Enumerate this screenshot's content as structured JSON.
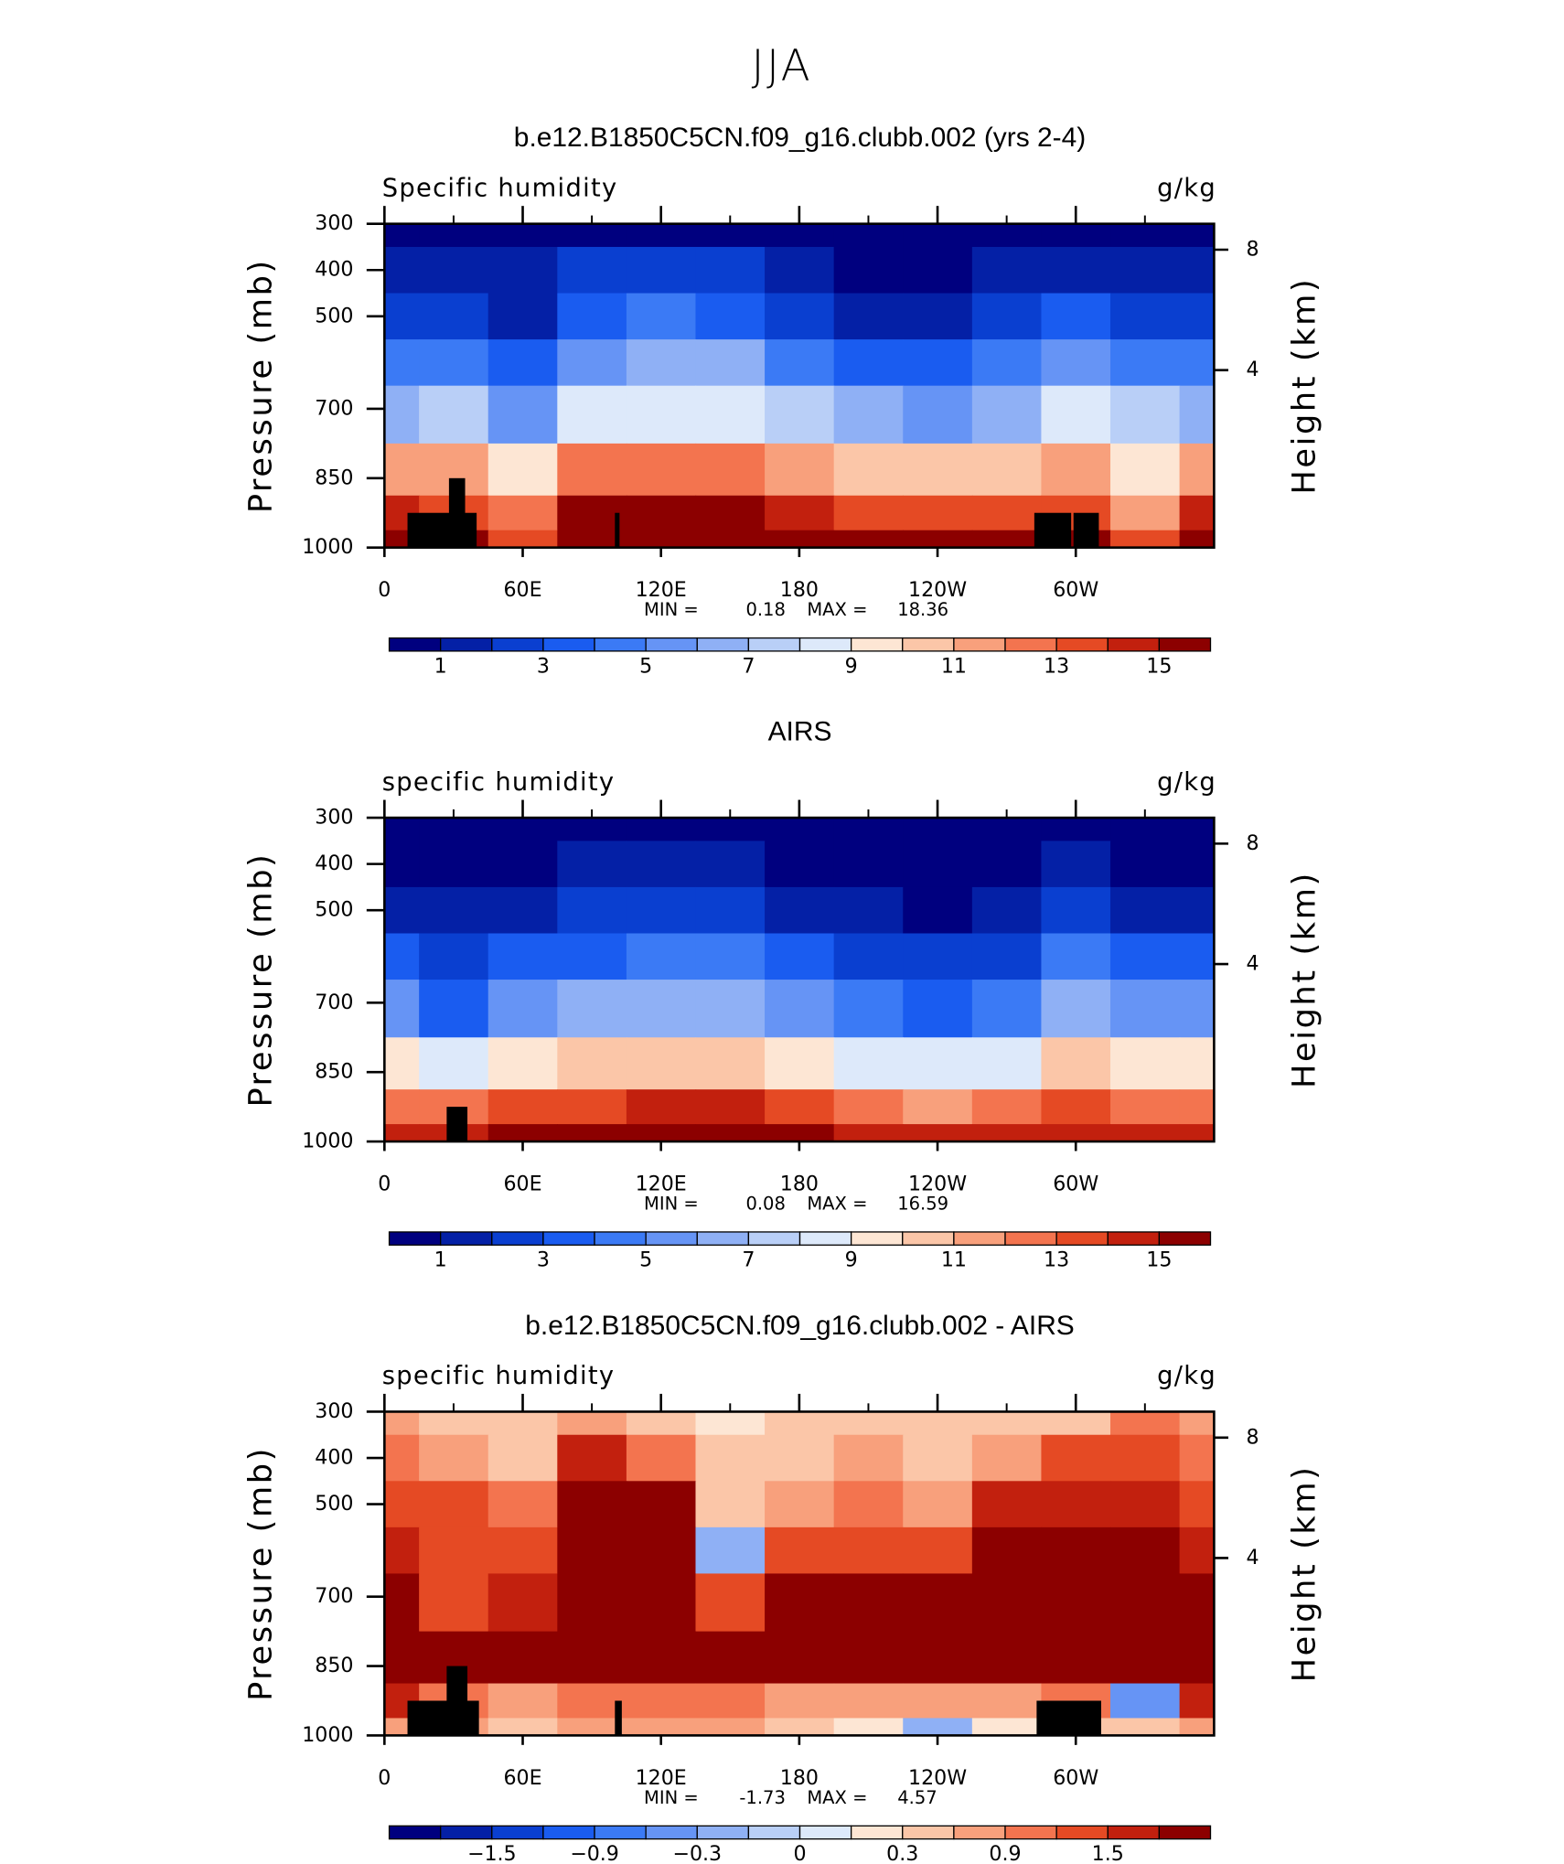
{
  "title": "JJA",
  "chart_data": [
    {
      "type": "contour",
      "title": "b.e12.B1850C5CN.f09_g16.clubb.002 (yrs 2-4)",
      "left_label": "Specific humidity",
      "units": "g/kg",
      "y_label": "Pressure (mb)",
      "y2_label": "Height (km)",
      "x": [
        0,
        30,
        60,
        90,
        120,
        150,
        180,
        210,
        240,
        270,
        300,
        330,
        360
      ],
      "y": [
        300,
        400,
        500,
        600,
        700,
        850,
        925,
        1000
      ],
      "values": [
        [
          0.5,
          0.5,
          0.4,
          0.6,
          0.8,
          0.7,
          0.4,
          0.3,
          0.3,
          0.4,
          0.5,
          0.5,
          0.5
        ],
        [
          1.5,
          1.6,
          1,
          2,
          2.5,
          2.2,
          1.3,
          0.8,
          0.7,
          1,
          1.8,
          1.5,
          1.5
        ],
        [
          2.5,
          2.8,
          1.8,
          3.5,
          4.2,
          3.8,
          2.5,
          1.8,
          1.6,
          2.2,
          3.2,
          2.8,
          2.5
        ],
        [
          4,
          4.5,
          3,
          5.5,
          6.5,
          6,
          4.5,
          3.5,
          3.2,
          4,
          5.5,
          4.5,
          4
        ],
        [
          6.5,
          7,
          5,
          8,
          8.5,
          8.3,
          7,
          6,
          5.8,
          6.5,
          8,
          7,
          6.5
        ],
        [
          11,
          11,
          9,
          12,
          12,
          12,
          11,
          10.5,
          10,
          10,
          11,
          9,
          11
        ],
        [
          14,
          13,
          12,
          15,
          15,
          15,
          14.5,
          13.5,
          13,
          13,
          13,
          11,
          14
        ],
        [
          16,
          15,
          13,
          17,
          17,
          17,
          16.5,
          15.5,
          15,
          15,
          15,
          13,
          16
        ]
      ],
      "terrain": [
        [
          10,
          40,
          925
        ],
        [
          28,
          35,
          850
        ],
        [
          100,
          102,
          925
        ],
        [
          282,
          298,
          925
        ],
        [
          299,
          310,
          925
        ]
      ],
      "xlim": [
        0,
        360
      ],
      "xticks": [
        0,
        {
          "value": 60,
          "label": "60E"
        },
        {
          "value": 120,
          "label": "120E"
        },
        180,
        {
          "value": 240,
          "label": "120W"
        },
        {
          "value": 300,
          "label": "60W"
        }
      ],
      "xminor": [
        30,
        90,
        150,
        210,
        270,
        330
      ],
      "ylim": [
        1000,
        300
      ],
      "yticks": [
        300,
        400,
        500,
        700,
        850,
        1000
      ],
      "y2ticks": [
        4,
        8
      ],
      "min_label": "MIN =",
      "min": 0.18,
      "max_label": "MAX =",
      "max": 18.36,
      "levels": [
        1,
        2,
        3,
        4,
        5,
        6,
        7,
        8,
        9,
        10,
        11,
        12,
        13,
        14,
        15
      ],
      "level_ticks": [
        1,
        3,
        5,
        7,
        9,
        11,
        13,
        15
      ],
      "colors": [
        "#00007f",
        "#0420a6",
        "#0a3fd0",
        "#1a5cf0",
        "#3b7af5",
        "#6694f5",
        "#8fb0f5",
        "#b9cff7",
        "#dde9fa",
        "#fde6d4",
        "#fbc6a8",
        "#f8a07c",
        "#f3744f",
        "#e54a24",
        "#c2200e",
        "#8c0000"
      ]
    },
    {
      "type": "contour",
      "title": "AIRS",
      "left_label": "specific humidity",
      "units": "g/kg",
      "y_label": "Pressure (mb)",
      "y2_label": "Height (km)",
      "x": [
        0,
        30,
        60,
        90,
        120,
        150,
        180,
        210,
        240,
        270,
        300,
        330,
        360
      ],
      "y": [
        300,
        400,
        500,
        600,
        700,
        850,
        925,
        1000
      ],
      "values": [
        [
          0.3,
          0.2,
          0.3,
          0.4,
          0.4,
          0.4,
          0.2,
          0.2,
          0.2,
          0.3,
          0.4,
          0.3,
          0.3
        ],
        [
          0.8,
          0.6,
          0.8,
          1.2,
          1.3,
          1.3,
          0.8,
          0.5,
          0.4,
          0.6,
          1.4,
          0.8,
          0.8
        ],
        [
          1.5,
          1.2,
          1.6,
          2.2,
          2.4,
          2.4,
          1.6,
          1.1,
          0.9,
          1.2,
          2.4,
          1.5,
          1.5
        ],
        [
          3,
          2.3,
          3,
          3.8,
          4,
          4,
          3,
          2.3,
          2,
          2.5,
          4.2,
          3,
          3
        ],
        [
          5,
          3.8,
          5,
          6,
          6.2,
          6.5,
          5,
          4.2,
          3.8,
          4.5,
          6.5,
          5,
          5
        ],
        [
          9,
          8,
          9.5,
          10,
          10,
          10.5,
          9.5,
          8.5,
          8,
          8.5,
          10,
          9,
          9
        ],
        [
          12,
          12,
          13,
          13.5,
          14,
          14,
          13,
          12,
          11.5,
          12,
          13,
          12.5,
          12
        ],
        [
          14,
          14,
          15,
          15.5,
          15.5,
          16,
          15.5,
          14.5,
          14,
          14,
          14.5,
          14.5,
          14
        ]
      ],
      "terrain": [
        [
          27,
          36,
          925
        ]
      ],
      "xlim": [
        0,
        360
      ],
      "xticks": [
        0,
        {
          "value": 60,
          "label": "60E"
        },
        {
          "value": 120,
          "label": "120E"
        },
        180,
        {
          "value": 240,
          "label": "120W"
        },
        {
          "value": 300,
          "label": "60W"
        }
      ],
      "xminor": [
        30,
        90,
        150,
        210,
        270,
        330
      ],
      "ylim": [
        1000,
        300
      ],
      "yticks": [
        300,
        400,
        500,
        700,
        850,
        1000
      ],
      "y2ticks": [
        4,
        8
      ],
      "min_label": "MIN =",
      "min": 0.08,
      "max_label": "MAX =",
      "max": 16.59,
      "levels": [
        1,
        2,
        3,
        4,
        5,
        6,
        7,
        8,
        9,
        10,
        11,
        12,
        13,
        14,
        15
      ],
      "level_ticks": [
        1,
        3,
        5,
        7,
        9,
        11,
        13,
        15
      ],
      "colors": [
        "#00007f",
        "#0420a6",
        "#0a3fd0",
        "#1a5cf0",
        "#3b7af5",
        "#6694f5",
        "#8fb0f5",
        "#b9cff7",
        "#dde9fa",
        "#fde6d4",
        "#fbc6a8",
        "#f8a07c",
        "#f3744f",
        "#e54a24",
        "#c2200e",
        "#8c0000"
      ]
    },
    {
      "type": "contour",
      "title": "b.e12.B1850C5CN.f09_g16.clubb.002 - AIRS",
      "left_label": "specific humidity",
      "units": "g/kg",
      "y_label": "Pressure (mb)",
      "y2_label": "Height (km)",
      "x": [
        0,
        30,
        60,
        90,
        120,
        150,
        180,
        210,
        240,
        270,
        300,
        330,
        360
      ],
      "y": [
        300,
        400,
        500,
        600,
        700,
        850,
        925,
        1000
      ],
      "values": [
        [
          0.6,
          0.4,
          0.3,
          0.8,
          0.5,
          0.2,
          0.3,
          0.4,
          0.3,
          0.5,
          0.5,
          0.9,
          0.6
        ],
        [
          1,
          0.8,
          0.5,
          1.5,
          1,
          0.3,
          0.5,
          0.6,
          0.4,
          0.8,
          1.2,
          1.3,
          1
        ],
        [
          1.4,
          1.2,
          0.9,
          2.2,
          1.8,
          0.4,
          0.8,
          0.9,
          0.7,
          1.5,
          1.6,
          1.6,
          1.4
        ],
        [
          1.6,
          1.3,
          1.2,
          2.5,
          2.2,
          -0.2,
          1.3,
          1.2,
          1.2,
          1.8,
          1.8,
          1.9,
          1.6
        ],
        [
          2,
          1.2,
          1.6,
          2.6,
          2.4,
          1.2,
          2,
          2,
          2.2,
          2,
          2.1,
          2.2,
          2
        ],
        [
          2.5,
          2,
          2.2,
          2.5,
          2.6,
          2.2,
          2.2,
          2,
          2.1,
          2,
          2.2,
          2.5,
          2.5
        ],
        [
          1.5,
          1,
          0.8,
          0.9,
          1.1,
          1,
          0.6,
          0.7,
          0.6,
          0.8,
          1,
          -0.5,
          1.5
        ],
        [
          0.8,
          0.6,
          0.5,
          0.7,
          0.6,
          0.6,
          0.3,
          0.1,
          -0.2,
          0.2,
          0.4,
          0.3,
          0.8
        ]
      ],
      "terrain": [
        [
          10,
          41,
          925
        ],
        [
          27,
          36,
          850
        ],
        [
          100,
          103,
          925
        ],
        [
          283,
          311,
          925
        ]
      ],
      "xlim": [
        0,
        360
      ],
      "xticks": [
        0,
        {
          "value": 60,
          "label": "60E"
        },
        {
          "value": 120,
          "label": "120E"
        },
        180,
        {
          "value": 240,
          "label": "120W"
        },
        {
          "value": 300,
          "label": "60W"
        }
      ],
      "xminor": [
        30,
        90,
        150,
        210,
        270,
        330
      ],
      "ylim": [
        1000,
        300
      ],
      "yticks": [
        300,
        400,
        500,
        700,
        850,
        1000
      ],
      "y2ticks": [
        4,
        8
      ],
      "min_label": "MIN =",
      "min": -1.73,
      "max_label": "MAX =",
      "max": 4.57,
      "levels": [
        -1.8,
        -1.5,
        -1.2,
        -0.9,
        -0.6,
        -0.3,
        -0.1,
        0,
        0.1,
        0.3,
        0.6,
        0.9,
        1.2,
        1.5,
        1.8
      ],
      "level_ticks": [
        {
          "value": -1.5,
          "label": "−1.5"
        },
        {
          "value": -0.9,
          "label": "−0.9"
        },
        {
          "value": -0.3,
          "label": "−0.3"
        },
        0,
        0.3,
        0.9,
        1.5
      ],
      "colors": [
        "#00007f",
        "#0420a6",
        "#0a3fd0",
        "#1a5cf0",
        "#3b7af5",
        "#6694f5",
        "#8fb0f5",
        "#b9cff7",
        "#dde9fa",
        "#fde6d4",
        "#fbc6a8",
        "#f8a07c",
        "#f3744f",
        "#e54a24",
        "#c2200e",
        "#8c0000"
      ]
    }
  ]
}
